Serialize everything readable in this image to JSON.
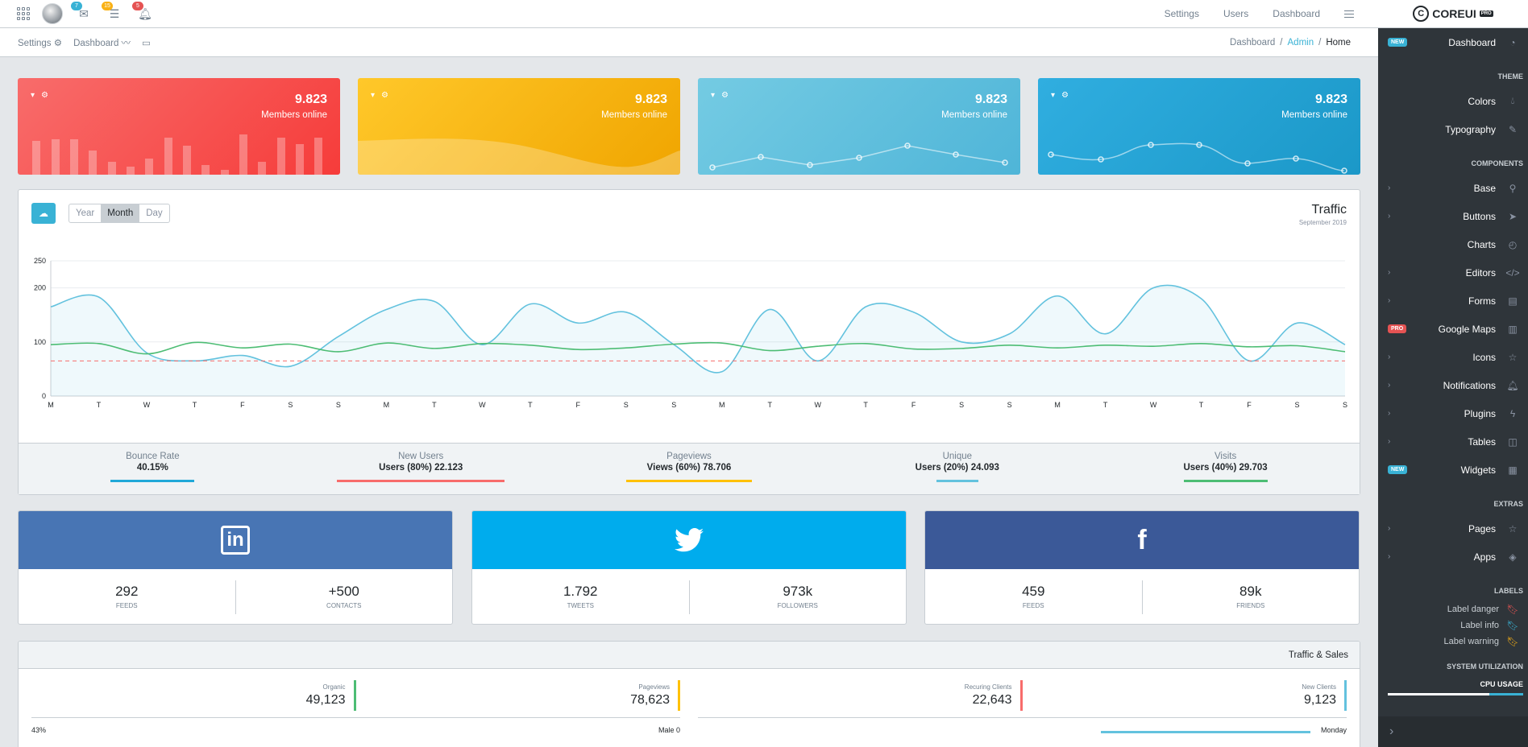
{
  "header": {
    "nav": [
      "Settings",
      "Users",
      "Dashboard"
    ],
    "badges": {
      "mail": "7",
      "tasks": "15",
      "alerts": "5"
    }
  },
  "subheader": {
    "settings": "Settings",
    "dashboard": "Dashboard",
    "breadcrumb": [
      "Dashboard",
      "Admin",
      "Home"
    ]
  },
  "brand": {
    "name": "COREUI",
    "tag": "PRO",
    "logo": "C"
  },
  "sidebar": {
    "dashboard": {
      "label": "Dashboard",
      "badge": "NEW"
    },
    "theme_title": "THEME",
    "colors": "Colors",
    "typography": "Typography",
    "components_title": "COMPONENTS",
    "base": "Base",
    "buttons": "Buttons",
    "charts": "Charts",
    "editors": "Editors",
    "forms": "Forms",
    "google_maps": {
      "label": "Google Maps",
      "badge": "PRO"
    },
    "icons": "Icons",
    "notifications": "Notifications",
    "plugins": "Plugins",
    "tables": "Tables",
    "widgets": {
      "label": "Widgets",
      "badge": "NEW"
    },
    "extras_title": "EXTRAS",
    "pages": "Pages",
    "apps": "Apps",
    "labels_title": "LABELS",
    "label_danger": "Label danger",
    "label_info": "Label info",
    "label_warning": "Label warning",
    "system_title": "SYSTEM UTILIZATION",
    "cpu_label": "CPU USAGE",
    "cpu_fraction": 0.25
  },
  "stat_cards": [
    {
      "value": "9.823",
      "label": "Members online",
      "color": "#f86c6b"
    },
    {
      "value": "9.823",
      "label": "Members online",
      "color": "#ffc107"
    },
    {
      "value": "9.823",
      "label": "Members online",
      "color": "#63c2de"
    },
    {
      "value": "9.823",
      "label": "Members online",
      "color": "#20a8d8"
    }
  ],
  "traffic": {
    "title": "Traffic",
    "subtitle": "September 2019",
    "ranges": [
      "Year",
      "Month",
      "Day"
    ],
    "selected_range": "Month",
    "footer": [
      {
        "label": "Bounce Rate",
        "value": "40.15%",
        "color": "#20a8d8",
        "fraction": 0.4
      },
      {
        "label": "New Users",
        "value": "Users (80%) 22.123",
        "color": "#f86c6b",
        "fraction": 0.8
      },
      {
        "label": "Pageviews",
        "value": "Views (60%) 78.706",
        "color": "#ffc107",
        "fraction": 0.6
      },
      {
        "label": "Unique",
        "value": "Users (20%) 24.093",
        "color": "#63c2de",
        "fraction": 0.2
      },
      {
        "label": "Visits",
        "value": "Users (40%) 29.703",
        "color": "#4dbd74",
        "fraction": 0.4
      }
    ]
  },
  "chart_data": {
    "type": "line",
    "ylim": [
      0,
      250
    ],
    "yticks": [
      0,
      100,
      200,
      250
    ],
    "categories": [
      "M",
      "T",
      "W",
      "T",
      "F",
      "S",
      "S",
      "M",
      "T",
      "W",
      "T",
      "F",
      "S",
      "S",
      "M",
      "T",
      "W",
      "T",
      "F",
      "S",
      "S",
      "M",
      "T",
      "W",
      "T",
      "F",
      "S",
      "S"
    ],
    "series": [
      {
        "values": [
          165,
          183,
          80,
          65,
          75,
          55,
          110,
          160,
          175,
          95,
          170,
          135,
          155,
          95,
          45,
          160,
          65,
          165,
          155,
          100,
          115,
          185,
          115,
          200,
          180,
          65,
          135,
          95
        ],
        "color": "#63c2de",
        "fill": true
      },
      {
        "values": [
          95,
          97,
          78,
          99,
          89,
          96,
          82,
          98,
          88,
          97,
          94,
          86,
          89,
          96,
          98,
          84,
          92,
          97,
          87,
          88,
          94,
          89,
          94,
          92,
          97,
          91,
          93,
          82
        ],
        "color": "#4dbd74",
        "fill": false
      },
      {
        "values": [
          65,
          65,
          65,
          65,
          65,
          65,
          65,
          65,
          65,
          65,
          65,
          65,
          65,
          65,
          65,
          65,
          65,
          65,
          65,
          65,
          65,
          65,
          65,
          65,
          65,
          65,
          65,
          65
        ],
        "color": "#f86c6b",
        "dashed": true
      }
    ]
  },
  "social": [
    {
      "name": "linkedin",
      "icon": "in",
      "a_value": "292",
      "a_label": "FEEDS",
      "b_value": "+500",
      "b_label": "CONTACTS"
    },
    {
      "name": "twitter",
      "icon": "🐦",
      "a_value": "1.792",
      "a_label": "TWEETS",
      "b_value": "973k",
      "b_label": "FOLLOWERS"
    },
    {
      "name": "facebook",
      "icon": "f",
      "a_value": "459",
      "a_label": "FEEDS",
      "b_value": "89k",
      "b_label": "FRIENDS"
    }
  ],
  "traffic_sales": {
    "title": "Traffic & Sales",
    "stats": [
      {
        "label": "Organic",
        "value": "49,123",
        "color": "#4dbd74"
      },
      {
        "label": "Pageviews",
        "value": "78,623",
        "color": "#ffc107"
      },
      {
        "label": "Recuring Clients",
        "value": "22,643",
        "color": "#f86c6b"
      },
      {
        "label": "New Clients",
        "value": "9,123",
        "color": "#63c2de"
      }
    ],
    "bottom_left": "43%",
    "bottom_mid": "Male",
    "bottom_mid_value": "0",
    "bottom_right": "Monday"
  }
}
